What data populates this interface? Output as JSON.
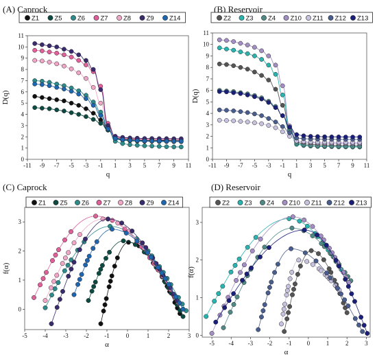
{
  "chart_data": [
    {
      "id": "A",
      "type": "line",
      "title": "(A)  Caprock",
      "xlabel": "q",
      "ylabel": "D(q)",
      "xlim": [
        -11,
        11
      ],
      "ylim": [
        0,
        11
      ],
      "xticks": [
        -11,
        -9,
        -7,
        -5,
        -3,
        -1,
        1,
        3,
        5,
        7,
        9,
        11
      ],
      "yticks": [
        0,
        1,
        2,
        3,
        4,
        5,
        6,
        7,
        8,
        9,
        10,
        11
      ],
      "x": [
        -10,
        -9,
        -8,
        -7,
        -6,
        -5,
        -4,
        -3,
        -2,
        -1,
        0,
        1,
        2,
        3,
        4,
        5,
        6,
        7,
        8,
        9,
        10
      ],
      "series": [
        {
          "name": "Z1",
          "color": "#111111",
          "values": [
            5.6,
            5.5,
            5.4,
            5.3,
            5.2,
            5.0,
            4.8,
            4.5,
            4.1,
            3.5,
            2.6,
            1.9,
            1.8,
            1.75,
            1.72,
            1.7,
            1.7,
            1.68,
            1.68,
            1.67,
            1.67
          ]
        },
        {
          "name": "Z5",
          "color": "#0c4a42",
          "values": [
            4.6,
            4.55,
            4.5,
            4.4,
            4.3,
            4.15,
            4.0,
            3.8,
            3.55,
            3.2,
            2.6,
            1.8,
            1.7,
            1.65,
            1.62,
            1.6,
            1.6,
            1.58,
            1.58,
            1.57,
            1.57
          ]
        },
        {
          "name": "Z6",
          "color": "#2e8b8b",
          "values": [
            7.0,
            6.95,
            6.85,
            6.7,
            6.55,
            6.35,
            6.1,
            5.7,
            5.1,
            4.2,
            2.8,
            1.6,
            1.4,
            1.3,
            1.25,
            1.2,
            1.18,
            1.15,
            1.12,
            1.1,
            1.1
          ]
        },
        {
          "name": "Z7",
          "color": "#e0609a",
          "values": [
            9.7,
            9.65,
            9.55,
            9.45,
            9.3,
            9.1,
            8.8,
            8.4,
            7.8,
            6.5,
            3.2,
            2.0,
            1.9,
            1.85,
            1.83,
            1.8,
            1.8,
            1.8,
            1.8,
            1.8,
            1.8
          ]
        },
        {
          "name": "Z8",
          "color": "#f0a6c6",
          "values": [
            8.8,
            8.75,
            8.65,
            8.5,
            8.3,
            8.05,
            7.7,
            7.2,
            6.4,
            5.0,
            2.9,
            1.95,
            1.85,
            1.8,
            1.77,
            1.75,
            1.75,
            1.74,
            1.74,
            1.73,
            1.73
          ]
        },
        {
          "name": "Z9",
          "color": "#3a2a6e",
          "values": [
            10.3,
            10.2,
            10.1,
            10.0,
            9.8,
            9.6,
            9.3,
            8.8,
            8.0,
            6.2,
            3.0,
            2.05,
            1.95,
            1.9,
            1.88,
            1.85,
            1.85,
            1.84,
            1.84,
            1.83,
            1.83
          ]
        },
        {
          "name": "Z14",
          "color": "#1f66b0",
          "values": [
            6.7,
            6.65,
            6.55,
            6.4,
            6.25,
            6.05,
            5.8,
            5.4,
            4.8,
            3.9,
            2.7,
            1.85,
            1.75,
            1.7,
            1.66,
            1.64,
            1.63,
            1.62,
            1.61,
            1.6,
            1.6
          ]
        }
      ]
    },
    {
      "id": "B",
      "type": "line",
      "title": "(B)  Reservoir",
      "xlabel": "q",
      "ylabel": "D(q)",
      "xlim": [
        -11,
        11
      ],
      "ylim": [
        0,
        11
      ],
      "xticks": [
        -11,
        -9,
        -7,
        -5,
        -3,
        -1,
        1,
        3,
        5,
        7,
        9,
        11
      ],
      "yticks": [
        0,
        1,
        2,
        3,
        4,
        5,
        6,
        7,
        8,
        9,
        10,
        11
      ],
      "x": [
        -10,
        -9,
        -8,
        -7,
        -6,
        -5,
        -4,
        -3,
        -2,
        -1,
        0,
        1,
        2,
        3,
        4,
        5,
        6,
        7,
        8,
        9,
        10
      ],
      "series": [
        {
          "name": "Z2",
          "color": "#555555",
          "values": [
            8.3,
            8.25,
            8.15,
            8.0,
            7.85,
            7.6,
            7.3,
            6.9,
            6.1,
            4.7,
            2.7,
            1.5,
            1.35,
            1.3,
            1.27,
            1.25,
            1.24,
            1.22,
            1.21,
            1.2,
            1.2
          ]
        },
        {
          "name": "Z3",
          "color": "#2bb3b0",
          "values": [
            9.7,
            9.6,
            9.5,
            9.35,
            9.2,
            9.0,
            8.7,
            8.2,
            7.4,
            5.6,
            2.6,
            1.3,
            1.2,
            1.15,
            1.12,
            1.1,
            1.1,
            1.08,
            1.08,
            1.07,
            1.07
          ]
        },
        {
          "name": "Z4",
          "color": "#4f8a87",
          "values": [
            6.0,
            5.95,
            5.9,
            5.8,
            5.7,
            5.55,
            5.35,
            5.05,
            4.6,
            3.8,
            2.5,
            1.4,
            1.25,
            1.2,
            1.17,
            1.15,
            1.14,
            1.13,
            1.12,
            1.12,
            1.12
          ]
        },
        {
          "name": "Z10",
          "color": "#a48fc4",
          "values": [
            10.4,
            10.35,
            10.25,
            10.1,
            9.95,
            9.75,
            9.45,
            9.0,
            8.2,
            6.4,
            2.9,
            1.6,
            1.5,
            1.45,
            1.42,
            1.4,
            1.4,
            1.39,
            1.39,
            1.38,
            1.38
          ]
        },
        {
          "name": "Z11",
          "color": "#c8c2de",
          "values": [
            3.4,
            3.38,
            3.35,
            3.3,
            3.25,
            3.18,
            3.1,
            2.95,
            2.75,
            2.4,
            2.0,
            1.6,
            1.55,
            1.52,
            1.5,
            1.5,
            1.49,
            1.49,
            1.48,
            1.48,
            1.48
          ]
        },
        {
          "name": "Z12",
          "color": "#4a5d8f",
          "values": [
            4.3,
            4.27,
            4.22,
            4.15,
            4.07,
            3.95,
            3.8,
            3.55,
            3.25,
            2.85,
            2.3,
            1.85,
            1.8,
            1.77,
            1.75,
            1.74,
            1.74,
            1.73,
            1.73,
            1.73,
            1.73
          ]
        },
        {
          "name": "Z13",
          "color": "#1a1f7a",
          "values": [
            5.9,
            5.87,
            5.8,
            5.72,
            5.6,
            5.45,
            5.25,
            4.95,
            4.5,
            3.8,
            2.8,
            2.15,
            2.05,
            2.0,
            1.98,
            1.96,
            1.95,
            1.95,
            1.94,
            1.94,
            1.94
          ]
        }
      ]
    },
    {
      "id": "C",
      "type": "scatter",
      "title": "(C)  Caprock",
      "xlabel": "α",
      "ylabel": "f(α)",
      "xlim": [
        -5,
        3
      ],
      "ylim": [
        -0.7,
        3.5
      ],
      "xticks": [
        -5,
        -4,
        -3,
        -2,
        -1,
        0,
        1,
        2,
        3
      ],
      "yticks": [
        0,
        1,
        2,
        3
      ],
      "series": [
        {
          "name": "Z1",
          "color": "#111111",
          "amin": -1.3,
          "a0": 0.05,
          "amax": 2.55,
          "fmax": 2.3,
          "fleft": -0.5,
          "fright": -0.15
        },
        {
          "name": "Z5",
          "color": "#0c4a42",
          "amin": -1.9,
          "a0": -0.2,
          "amax": 2.7,
          "fmax": 2.35,
          "fleft": 0.3,
          "fright": -0.25
        },
        {
          "name": "Z6",
          "color": "#2e8b8b",
          "amin": -4.0,
          "a0": -0.85,
          "amax": 2.85,
          "fmax": 2.85,
          "fleft": 0.05,
          "fright": -0.05
        },
        {
          "name": "Z7",
          "color": "#e0609a",
          "amin": -4.55,
          "a0": -1.55,
          "amax": 2.5,
          "fmax": 3.2,
          "fleft": 0.4,
          "fright": 0.2
        },
        {
          "name": "Z8",
          "color": "#f0a6c6",
          "amin": -4.0,
          "a0": -1.2,
          "amax": 2.45,
          "fmax": 3.1,
          "fleft": 0.3,
          "fright": 0.25
        },
        {
          "name": "Z9",
          "color": "#3a2a6e",
          "amin": -3.7,
          "a0": -0.95,
          "amax": 2.4,
          "fmax": 3.1,
          "fleft": -0.5,
          "fright": 0.3
        },
        {
          "name": "Z14",
          "color": "#1f66b0",
          "amin": -2.6,
          "a0": -0.75,
          "amax": 2.7,
          "fmax": 2.75,
          "fleft": 0.5,
          "fright": 0.0
        }
      ]
    },
    {
      "id": "D",
      "type": "scatter",
      "title": "(D)  Reservoir",
      "xlabel": "α",
      "ylabel": "f(α)",
      "xlim": [
        -5.5,
        3.2
      ],
      "ylim": [
        -0.05,
        3.4
      ],
      "xticks": [
        -5,
        -4,
        -3,
        -2,
        -1,
        0,
        1,
        2,
        3
      ],
      "yticks": [
        0,
        1,
        2,
        3
      ],
      "series": [
        {
          "name": "Z2",
          "color": "#555555",
          "amin": -1.25,
          "a0": 0.15,
          "amax": 2.0,
          "fmax": 2.25,
          "fleft": 0.1,
          "fright": 0.6
        },
        {
          "name": "Z3",
          "color": "#2bb3b0",
          "amin": -5.3,
          "a0": -1.0,
          "amax": 1.7,
          "fmax": 3.1,
          "fleft": 0.5,
          "fright": 1.75
        },
        {
          "name": "Z4",
          "color": "#4f8a87",
          "amin": -4.4,
          "a0": -0.85,
          "amax": 2.2,
          "fmax": 2.85,
          "fleft": 0.2,
          "fright": 1.45
        },
        {
          "name": "Z10",
          "color": "#a48fc4",
          "amin": -5.0,
          "a0": -0.8,
          "amax": 2.1,
          "fmax": 3.15,
          "fleft": 0.05,
          "fright": 1.4
        },
        {
          "name": "Z11",
          "color": "#c8c2de",
          "amin": -1.4,
          "a0": -0.5,
          "amax": 1.6,
          "fmax": 2.0,
          "fleft": 0.3,
          "fright": 1.2
        },
        {
          "name": "Z12",
          "color": "#4a5d8f",
          "amin": -2.6,
          "a0": -0.9,
          "amax": 2.8,
          "fmax": 2.3,
          "fleft": 0.15,
          "fright": 0.1
        },
        {
          "name": "Z13",
          "color": "#1a1f7a",
          "amin": -4.8,
          "a0": -0.2,
          "amax": 3.05,
          "fmax": 2.8,
          "fleft": 0.35,
          "fright": 0.05
        }
      ]
    }
  ]
}
